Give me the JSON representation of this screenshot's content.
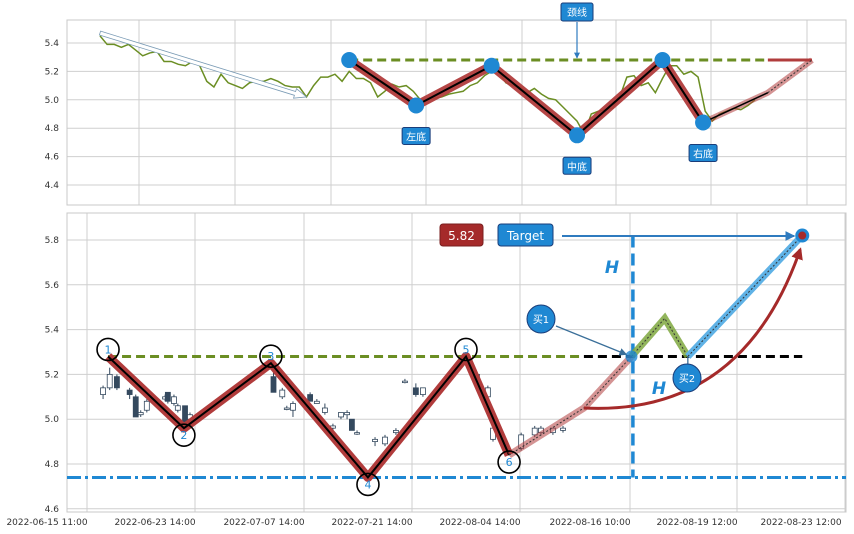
{
  "colors": {
    "blue": "#1f88d3",
    "pattern_red": "#b13c3c",
    "neckline_green": "#6b8e23",
    "price_line_green": "#6b8e23",
    "target_red": "#a52a2a",
    "buy_green": "#7fa840",
    "light_blue": "#5fb2e6"
  },
  "chart_data": [
    {
      "type": "line",
      "panel": "top",
      "ylim": [
        4.26,
        5.56
      ],
      "yticks": [
        5.4,
        5.2,
        5.0,
        4.8,
        4.6,
        4.4
      ],
      "ytick_labels": [
        "5.4",
        "5.2",
        "5.0",
        "4.8",
        "4.6",
        "4.4"
      ],
      "grid": true,
      "price_series": [
        5.45,
        5.39,
        5.39,
        5.37,
        5.39,
        5.35,
        5.31,
        5.33,
        5.34,
        5.27,
        5.27,
        5.25,
        5.24,
        5.27,
        5.24,
        5.13,
        5.09,
        5.18,
        5.12,
        5.1,
        5.08,
        5.12,
        5.13,
        5.13,
        5.15,
        5.13,
        5.1,
        5.09,
        5.09,
        5.02,
        5.1,
        5.16,
        5.16,
        5.18,
        5.13,
        5.2,
        5.15,
        5.15,
        5.12,
        5.02,
        5.06,
        5.11,
        5.09,
        5.1,
        5.06,
        5.0,
        5.0,
        5.01,
        5.02,
        5.04,
        5.05,
        5.06,
        5.1,
        5.12,
        5.17,
        5.2,
        5.2,
        5.12,
        5.1,
        5.09,
        5.05,
        5.08,
        5.04,
        5.01,
        5.0,
        4.95,
        4.9,
        4.85,
        4.76,
        4.9,
        4.92,
        4.93,
        4.94,
        5.02,
        5.16,
        5.17,
        5.1,
        5.12,
        5.05,
        5.15,
        5.24,
        5.24,
        5.18,
        5.2,
        5.16,
        4.92,
        4.85,
        4.9,
        4.92,
        4.94,
        4.93,
        4.96,
        5.0
      ],
      "trend_arrow": {
        "from": {
          "x": 0,
          "y": 5.47
        },
        "to": {
          "x": 29,
          "y": 5.02
        }
      },
      "pattern_points": [
        {
          "x": 35,
          "y": 5.28
        },
        {
          "x": 44.4,
          "y": 4.96,
          "label": "左底"
        },
        {
          "x": 55,
          "y": 5.24
        },
        {
          "x": 67,
          "y": 4.75,
          "label": "中底"
        },
        {
          "x": 79,
          "y": 5.28
        },
        {
          "x": 84.7,
          "y": 4.84,
          "label": "右底"
        }
      ],
      "projection": [
        {
          "x": 84.7,
          "y": 4.84
        },
        {
          "x": 93.8,
          "y": 5.05
        },
        {
          "x": 100,
          "y": 5.28
        }
      ],
      "neckline": {
        "value": 5.28,
        "label": "颈线",
        "from_x": 35,
        "to_x": 93.8,
        "end_x": 100
      }
    },
    {
      "type": "candlestick",
      "panel": "bottom",
      "ylim": [
        4.58,
        5.92
      ],
      "yticks": [
        5.8,
        5.6,
        5.4,
        5.2,
        5.0,
        4.8,
        4.6
      ],
      "ytick_labels": [
        "5.8",
        "5.6",
        "5.4",
        "5.2",
        "5.0",
        "4.8",
        "4.6"
      ],
      "xticks": [
        "2022-06-15 11:00",
        "2022-06-23 14:00",
        "2022-07-07 14:00",
        "2022-07-21 14:00",
        "2022-08-04 14:00",
        "2022-08-16 10:00",
        "2022-08-19 12:00",
        "2022-08-23 12:00"
      ],
      "grid": true,
      "candles": [
        [
          "2022-06-16 16:00",
          5.11,
          5.15,
          5.09,
          5.14
        ],
        [
          "2022-06-17 04:00",
          5.14,
          5.23,
          5.13,
          5.2
        ],
        [
          "2022-06-17 17:00",
          5.19,
          5.2,
          5.13,
          5.14
        ],
        [
          "2022-06-18 16:00",
          5.13,
          5.14,
          5.09,
          5.11
        ],
        [
          "2022-06-19 03:00",
          5.1,
          5.11,
          5.01,
          5.01
        ],
        [
          "2022-06-19 12:00",
          5.02,
          5.04,
          5.01,
          5.03
        ],
        [
          "2022-06-19 23:00",
          5.04,
          5.09,
          5.03,
          5.08
        ],
        [
          "2022-06-21 08:00",
          5.09,
          5.11,
          5.08,
          5.1
        ],
        [
          "2022-06-21 13:00",
          5.12,
          5.12,
          5.07,
          5.08
        ],
        [
          "2022-06-22 00:00",
          5.07,
          5.11,
          5.06,
          5.1
        ],
        [
          "2022-06-22 07:00",
          5.04,
          5.07,
          5.03,
          5.06
        ],
        [
          "2022-06-22 20:00",
          5.06,
          5.06,
          4.96,
          4.97
        ],
        [
          "2022-06-23 05:00",
          5.0,
          5.03,
          4.99,
          5.02
        ],
        [
          "2022-07-03 16:00",
          5.19,
          5.21,
          5.12,
          5.12
        ],
        [
          "2022-07-04 19:00",
          5.1,
          5.14,
          5.09,
          5.13
        ],
        [
          "2022-07-05 09:00",
          5.05,
          5.06,
          5.04,
          5.05
        ],
        [
          "2022-07-06 04:00",
          5.04,
          5.08,
          5.01,
          5.07
        ],
        [
          "2022-07-08 09:00",
          5.11,
          5.12,
          5.08,
          5.08
        ],
        [
          "2022-07-09 06:00",
          5.07,
          5.09,
          5.07,
          5.08
        ],
        [
          "2022-07-10 07:00",
          5.03,
          5.07,
          5.02,
          5.05
        ],
        [
          "2022-07-11 08:00",
          4.96,
          4.98,
          4.94,
          4.97
        ],
        [
          "2022-07-12 09:00",
          5.01,
          5.03,
          5.0,
          5.03
        ],
        [
          "2022-07-13 04:00",
          5.02,
          5.04,
          5.0,
          5.03
        ],
        [
          "2022-07-13 19:00",
          5.0,
          5.0,
          4.95,
          4.95
        ],
        [
          "2022-07-14 11:00",
          4.94,
          4.95,
          4.93,
          4.94
        ],
        [
          "2022-07-16 19:00",
          4.9,
          4.92,
          4.88,
          4.91
        ],
        [
          "2022-07-18 02:00",
          4.89,
          4.93,
          4.88,
          4.92
        ],
        [
          "2022-07-19 12:00",
          4.94,
          4.96,
          4.93,
          4.95
        ],
        [
          "2022-07-20 16:00",
          5.17,
          5.18,
          5.16,
          5.17
        ],
        [
          "2022-07-22 02:00",
          5.14,
          5.16,
          5.1,
          5.11
        ],
        [
          "2022-07-23 00:00",
          5.11,
          5.14,
          5.1,
          5.14
        ],
        [
          "2022-07-30 00:00",
          5.2,
          5.21,
          5.17,
          5.18
        ],
        [
          "2022-07-31 10:00",
          5.1,
          5.15,
          5.09,
          5.14
        ],
        [
          "2022-08-01 02:00",
          4.91,
          4.97,
          4.9,
          4.96
        ],
        [
          "2022-08-04 17:00",
          4.87,
          4.94,
          4.86,
          4.93
        ],
        [
          "2022-08-06 04:00",
          4.93,
          4.97,
          4.92,
          4.96
        ],
        [
          "2022-08-06 20:00",
          4.94,
          4.97,
          4.93,
          4.96
        ],
        [
          "2022-08-08 03:00",
          4.94,
          4.96,
          4.93,
          4.96
        ],
        [
          "2022-08-09 05:00",
          4.95,
          4.97,
          4.94,
          4.96
        ]
      ],
      "zigzag": [
        {
          "x": "2022-06-17 01:00",
          "y": 5.28,
          "label": "1"
        },
        {
          "x": "2022-06-22 18:00",
          "y": 4.96,
          "label": "2"
        },
        {
          "x": "2022-07-03 08:00",
          "y": 5.25,
          "label": "3"
        },
        {
          "x": "2022-07-15 21:00",
          "y": 4.74,
          "label": "4"
        },
        {
          "x": "2022-07-28 14:00",
          "y": 5.28,
          "label": "5"
        },
        {
          "x": "2022-08-03 04:00",
          "y": 4.84,
          "label": "6"
        }
      ],
      "projection": [
        {
          "x": "2022-08-03 04:00",
          "y": 4.84
        },
        {
          "x": "2022-08-11 11:00",
          "y": 5.05
        },
        {
          "x": "2022-08-16 11:00",
          "y": 5.28
        }
      ],
      "pullback": [
        {
          "x": "2022-08-16 11:00",
          "y": 5.28
        },
        {
          "x": "2022-08-17 10:00",
          "y": 5.45
        },
        {
          "x": "2022-08-18 02:00",
          "y": 5.28
        }
      ],
      "target_path": [
        {
          "x": "2022-08-18 02:00",
          "y": 5.28
        },
        {
          "x": "2022-08-21 22:00",
          "y": 5.82
        }
      ],
      "neckline": {
        "value": 5.28,
        "from": "2022-06-17 01:00",
        "break": "2022-08-11 11:00",
        "to": "2022-08-21 22:00"
      },
      "support": 4.74,
      "breakout_x": "2022-08-16 12:00",
      "target_value": 5.82,
      "value_label": "5.82",
      "target_label": "Target",
      "height_label": "H",
      "buy_labels": [
        "买1",
        "买2"
      ]
    }
  ]
}
